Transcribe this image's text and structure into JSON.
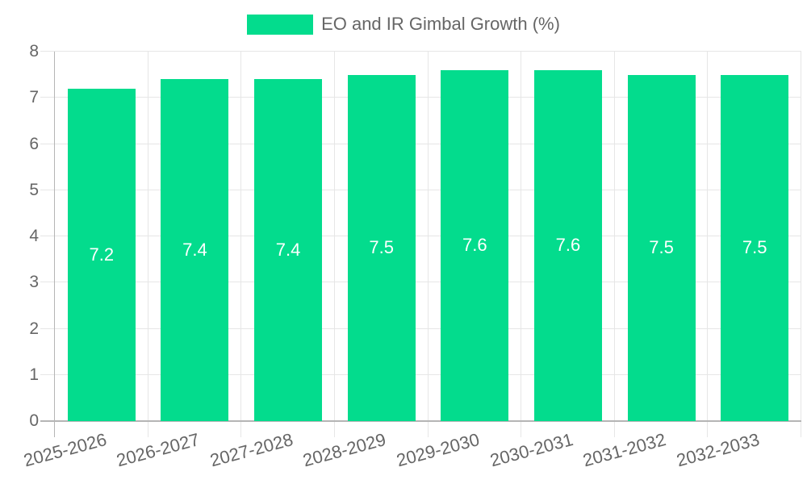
{
  "chart_data": {
    "type": "bar",
    "title": "EO and IR Gimbal Growth (%)",
    "legend_entries": [
      "EO and IR Gimbal Growth (%)"
    ],
    "legend_position": "top",
    "categories": [
      "2025-2026",
      "2026-2027",
      "2027-2028",
      "2028-2029",
      "2029-2030",
      "2030-2031",
      "2031-2032",
      "2032-2033"
    ],
    "values": [
      7.2,
      7.4,
      7.4,
      7.5,
      7.6,
      7.6,
      7.5,
      7.5
    ],
    "value_labels": [
      "7.2",
      "7.4",
      "7.4",
      "7.5",
      "7.6",
      "7.6",
      "7.5",
      "7.5"
    ],
    "xlabel": "",
    "ylabel": "",
    "ylim": [
      0,
      8
    ],
    "ytick_step": 1,
    "ytick_labels": [
      "0",
      "1",
      "2",
      "3",
      "4",
      "5",
      "6",
      "7",
      "8"
    ],
    "grid": true,
    "colors": {
      "bar": "#03DC8D",
      "value_label": "#ffffff",
      "axis_text": "#666666",
      "grid_line": "#e6e6e6",
      "axis_line": "#b5b5b5",
      "background": "#ffffff"
    }
  }
}
